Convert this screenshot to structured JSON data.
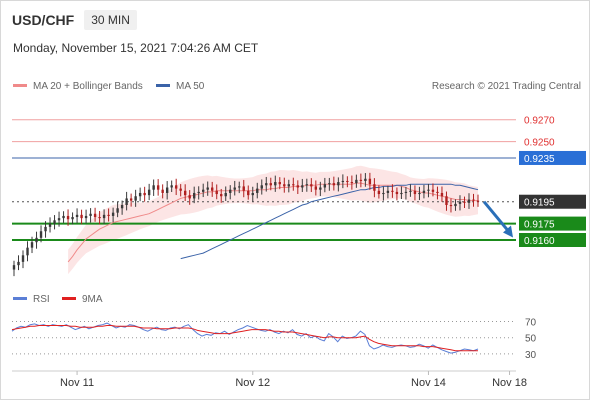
{
  "header": {
    "symbol": "USD/CHF",
    "timeframe": "30 MIN"
  },
  "datetime": "Monday, November 15, 2021 7:04:26 AM CET",
  "legend": {
    "ma20": {
      "label": "MA 20 + Bollinger Bands",
      "color": "#f08a8a"
    },
    "ma50": {
      "label": "MA 50",
      "color": "#3b63a8"
    },
    "rsi": {
      "label": "RSI",
      "color": "#5b7fd6"
    },
    "rsi_ma": {
      "label": "9MA",
      "color": "#e02020"
    }
  },
  "copyright": "Research © 2021 Trading Central",
  "levels": [
    {
      "value": 0.927,
      "label": "0.9270",
      "style": "resistance",
      "color": "#f0a0a0"
    },
    {
      "value": 0.925,
      "label": "0.9250",
      "style": "resistance",
      "color": "#f0a0a0"
    },
    {
      "value": 0.9235,
      "label": "0.9235",
      "style": "pivot",
      "color": "#3b63a8"
    },
    {
      "value": 0.9195,
      "label": "0.9195",
      "style": "last",
      "color": "#333333"
    },
    {
      "value": 0.9175,
      "label": "0.9175",
      "style": "support",
      "color": "#1a8a1a"
    },
    {
      "value": 0.916,
      "label": "0.9160",
      "style": "support",
      "color": "#1a8a1a"
    }
  ],
  "rsi_levels": [
    {
      "value": 70,
      "label": "70"
    },
    {
      "value": 50,
      "label": "50"
    },
    {
      "value": 30,
      "label": "30"
    }
  ],
  "x_labels": [
    "Nov 11",
    "Nov 12",
    "Nov 14",
    "Nov 18"
  ],
  "chart_data": {
    "type": "line",
    "title": "USD/CHF 30 MIN",
    "ylim": [
      0.9128,
      0.9288
    ],
    "rsi_ylim": [
      20,
      78
    ],
    "x_ticks": [
      {
        "label": "Nov 11",
        "index": 14
      },
      {
        "label": "Nov 12",
        "index": 53
      },
      {
        "label": "Nov 14",
        "index": 92
      },
      {
        "label": "Nov 18",
        "index": 110
      }
    ],
    "price_series": [
      0.9137,
      0.914,
      0.9146,
      0.9153,
      0.9158,
      0.9162,
      0.9168,
      0.9172,
      0.9175,
      0.9178,
      0.918,
      0.9182,
      0.9179,
      0.9181,
      0.9183,
      0.918,
      0.9182,
      0.9184,
      0.9181,
      0.918,
      0.9183,
      0.9182,
      0.9185,
      0.9189,
      0.9192,
      0.9198,
      0.9196,
      0.92,
      0.9203,
      0.9201,
      0.9206,
      0.921,
      0.9206,
      0.9203,
      0.9208,
      0.921,
      0.9207,
      0.9205,
      0.9201,
      0.9198,
      0.9203,
      0.9204,
      0.9206,
      0.9208,
      0.9205,
      0.9202,
      0.92,
      0.9203,
      0.9206,
      0.9208,
      0.9209,
      0.9205,
      0.9201,
      0.9203,
      0.9207,
      0.921,
      0.9212,
      0.921,
      0.9213,
      0.9211,
      0.9209,
      0.9211,
      0.921,
      0.9208,
      0.921,
      0.9211,
      0.9209,
      0.9206,
      0.9208,
      0.9211,
      0.9212,
      0.921,
      0.9213,
      0.9214,
      0.9213,
      0.9212,
      0.9215,
      0.9214,
      0.9216,
      0.9211,
      0.9205,
      0.9202,
      0.9203,
      0.9205,
      0.9204,
      0.9202,
      0.9203,
      0.9204,
      0.9205,
      0.9202,
      0.9203,
      0.9205,
      0.9206,
      0.9204,
      0.9203,
      0.92,
      0.9192,
      0.9191,
      0.9193,
      0.9195,
      0.9194,
      0.9197,
      0.9196,
      0.9195
    ],
    "ma20_series": [
      0.914,
      0.9145,
      0.9151,
      0.9156,
      0.9161,
      0.9164,
      0.9167,
      0.917,
      0.9172,
      0.9174,
      0.9176,
      0.9177,
      0.9178,
      0.9179,
      0.918,
      0.9181,
      0.9182,
      0.9183,
      0.9184,
      0.9186,
      0.9188,
      0.919,
      0.9192,
      0.9194,
      0.9196,
      0.9198,
      0.9199,
      0.92,
      0.9201,
      0.9202,
      0.9203,
      0.9204,
      0.9204,
      0.9205,
      0.9205,
      0.9205,
      0.9205,
      0.9205,
      0.9205,
      0.9205,
      0.9205,
      0.9205,
      0.9206,
      0.9206,
      0.9206,
      0.9207,
      0.9207,
      0.9208,
      0.9208,
      0.9208,
      0.9209,
      0.9209,
      0.9209,
      0.921,
      0.921,
      0.921,
      0.9211,
      0.9211,
      0.9211,
      0.9211,
      0.9211,
      0.9211,
      0.9211,
      0.9211,
      0.9212,
      0.9212,
      0.9211,
      0.921,
      0.921,
      0.921,
      0.921,
      0.921,
      0.921,
      0.921,
      0.9209,
      0.9208,
      0.9206,
      0.9205,
      0.9204,
      0.9203,
      0.9203,
      0.9202,
      0.9201,
      0.92,
      0.9199,
      0.9198,
      0.9197,
      0.9197,
      0.9197,
      0.9196,
      0.9196,
      0.9196
    ],
    "ma50_series": [
      0.9143,
      0.9144,
      0.9145,
      0.9146,
      0.9147,
      0.9148,
      0.915,
      0.9152,
      0.9154,
      0.9156,
      0.9158,
      0.916,
      0.9162,
      0.9164,
      0.9166,
      0.9168,
      0.917,
      0.9172,
      0.9174,
      0.9176,
      0.9178,
      0.918,
      0.9182,
      0.9184,
      0.9186,
      0.9188,
      0.919,
      0.9192,
      0.9193,
      0.9195,
      0.9196,
      0.9197,
      0.9198,
      0.9199,
      0.92,
      0.9201,
      0.9202,
      0.9203,
      0.9204,
      0.9205,
      0.9206,
      0.9206,
      0.9207,
      0.9208,
      0.9208,
      0.9209,
      0.9209,
      0.9209,
      0.921,
      0.921,
      0.921,
      0.9211,
      0.9211,
      0.9211,
      0.9211,
      0.9211,
      0.9211,
      0.9211,
      0.9211,
      0.9211,
      0.9211,
      0.921,
      0.921,
      0.9209,
      0.9208,
      0.9207,
      0.9206
    ],
    "bb_width": 0.0016,
    "rsi_series": [
      58,
      62,
      64,
      63,
      66,
      67,
      65,
      66,
      64,
      66,
      65,
      64,
      66,
      63,
      60,
      62,
      64,
      61,
      63,
      65,
      66,
      68,
      65,
      62,
      64,
      63,
      66,
      65,
      63,
      60,
      58,
      61,
      63,
      60,
      59,
      62,
      63,
      61,
      64,
      66,
      60,
      55,
      52,
      54,
      53,
      56,
      55,
      58,
      54,
      57,
      60,
      62,
      65,
      63,
      61,
      59,
      58,
      60,
      57,
      55,
      58,
      56,
      60,
      54,
      52,
      55,
      50,
      52,
      48,
      46,
      55,
      51,
      45,
      52,
      49,
      50,
      52,
      58,
      54,
      40,
      36,
      38,
      41,
      39,
      38,
      40,
      41,
      40,
      38,
      39,
      42,
      40,
      37,
      41,
      38,
      35,
      33,
      31,
      32,
      34,
      36,
      35,
      34,
      36
    ],
    "rsi_ma_series": [
      60,
      61,
      62,
      63,
      64,
      64,
      65,
      65,
      65,
      65,
      65,
      65,
      65,
      64,
      64,
      63,
      63,
      63,
      63,
      64,
      64,
      65,
      65,
      64,
      64,
      64,
      64,
      64,
      63,
      62,
      62,
      62,
      61,
      61,
      61,
      61,
      62,
      62,
      62,
      62,
      61,
      59,
      58,
      57,
      56,
      55,
      55,
      55,
      55,
      56,
      57,
      58,
      59,
      60,
      60,
      60,
      60,
      59,
      58,
      58,
      57,
      57,
      57,
      56,
      55,
      54,
      53,
      52,
      51,
      50,
      51,
      51,
      50,
      50,
      50,
      50,
      50,
      51,
      52,
      48,
      45,
      43,
      42,
      41,
      40,
      40,
      40,
      40,
      40,
      40,
      40,
      39,
      39,
      39,
      38,
      37,
      36,
      35,
      34,
      34,
      34,
      34,
      34,
      34
    ]
  }
}
